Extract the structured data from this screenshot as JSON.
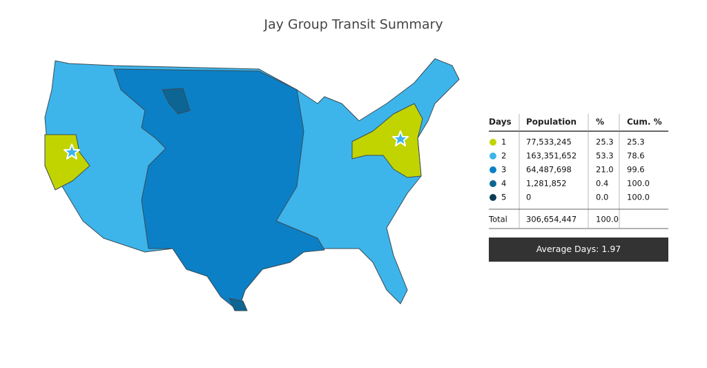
{
  "header": {
    "title": "Jay Group Transit Summary"
  },
  "table": {
    "columns": [
      "Days",
      "Population",
      "%",
      "Cum. %"
    ],
    "rows": [
      {
        "days": "1",
        "color": "#c1d400",
        "cells": [
          "77,533,245",
          "25.3",
          "25.3"
        ]
      },
      {
        "days": "2",
        "color": "#3db5ea",
        "cells": [
          "163,351,652",
          "53.3",
          "78.6"
        ]
      },
      {
        "days": "3",
        "color": "#0b80c6",
        "cells": [
          "64,487,698",
          "21.0",
          "99.6"
        ]
      },
      {
        "days": "4",
        "color": "#0d6594",
        "cells": [
          "1,281,852",
          "0.4",
          "100.0"
        ]
      },
      {
        "days": "5",
        "color": "#0c3b56",
        "cells": [
          "0",
          "0.0",
          "100.0"
        ]
      }
    ],
    "total": {
      "label": "Total",
      "cells": [
        "306,654,447",
        "100.0"
      ]
    }
  },
  "summary": "Average Days: 1.97"
}
